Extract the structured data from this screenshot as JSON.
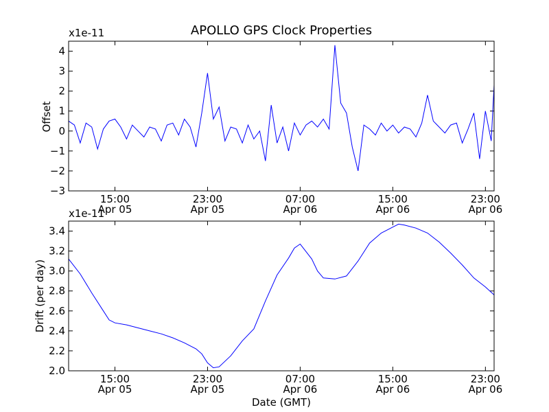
{
  "chart_data": [
    {
      "type": "line",
      "title": "APOLLO GPS Clock Properties",
      "ylabel": "Offset",
      "xlabel": "",
      "y_scale_label": "x1e-11",
      "ylim": [
        -3,
        4.5
      ],
      "xlim": [
        "Apr 05 11:00",
        "Apr 06 23:45"
      ],
      "yticks": [
        -3,
        -2,
        -1,
        0,
        1,
        2,
        3,
        4
      ],
      "ytick_labels": [
        "−3",
        "−2",
        "−1",
        "0",
        "1",
        "2",
        "3",
        "4"
      ],
      "xticks": [
        {
          "at": "Apr 05 15:00",
          "time": "15:00",
          "date": "Apr 05"
        },
        {
          "at": "Apr 05 23:00",
          "time": "23:00",
          "date": "Apr 05"
        },
        {
          "at": "Apr 06 07:00",
          "time": "07:00",
          "date": "Apr 06"
        },
        {
          "at": "Apr 06 15:00",
          "time": "15:00",
          "date": "Apr 06"
        },
        {
          "at": "Apr 06 23:00",
          "time": "23:00",
          "date": "Apr 06"
        }
      ],
      "series_color": "#0000ff",
      "series": [
        {
          "x": [
            "Apr 05 11:00",
            "Apr 05 11:30",
            "Apr 05 12:00",
            "Apr 05 12:30",
            "Apr 05 13:00",
            "Apr 05 13:30",
            "Apr 05 14:00",
            "Apr 05 14:30",
            "Apr 05 15:00",
            "Apr 05 15:30",
            "Apr 05 16:00",
            "Apr 05 16:30",
            "Apr 05 17:00",
            "Apr 05 17:30",
            "Apr 05 18:00",
            "Apr 05 18:30",
            "Apr 05 19:00",
            "Apr 05 19:30",
            "Apr 05 20:00",
            "Apr 05 20:30",
            "Apr 05 21:00",
            "Apr 05 21:30",
            "Apr 05 22:00",
            "Apr 05 22:30",
            "Apr 05 23:00",
            "Apr 05 23:30",
            "Apr 06 00:00",
            "Apr 06 00:30",
            "Apr 06 01:00",
            "Apr 06 01:30",
            "Apr 06 02:00",
            "Apr 06 02:30",
            "Apr 06 03:00",
            "Apr 06 03:30",
            "Apr 06 04:00",
            "Apr 06 04:30",
            "Apr 06 05:00",
            "Apr 06 05:30",
            "Apr 06 06:00",
            "Apr 06 06:30",
            "Apr 06 07:00",
            "Apr 06 07:30",
            "Apr 06 08:00",
            "Apr 06 08:30",
            "Apr 06 09:00",
            "Apr 06 09:30",
            "Apr 06 10:00",
            "Apr 06 10:30",
            "Apr 06 11:00",
            "Apr 06 11:30",
            "Apr 06 12:00",
            "Apr 06 12:30",
            "Apr 06 13:00",
            "Apr 06 13:30",
            "Apr 06 14:00",
            "Apr 06 14:30",
            "Apr 06 15:00",
            "Apr 06 15:30",
            "Apr 06 16:00",
            "Apr 06 16:30",
            "Apr 06 17:00",
            "Apr 06 17:30",
            "Apr 06 18:00",
            "Apr 06 18:30",
            "Apr 06 19:00",
            "Apr 06 19:30",
            "Apr 06 20:00",
            "Apr 06 20:30",
            "Apr 06 21:00",
            "Apr 06 21:30",
            "Apr 06 22:00",
            "Apr 06 22:30",
            "Apr 06 23:00",
            "Apr 06 23:30",
            "Apr 06 23:45"
          ],
          "y": [
            0.5,
            0.3,
            -0.6,
            0.4,
            0.2,
            -0.9,
            0.1,
            0.5,
            0.6,
            0.2,
            -0.4,
            0.3,
            0.0,
            -0.3,
            0.2,
            0.1,
            -0.5,
            0.3,
            0.4,
            -0.2,
            0.6,
            0.2,
            -0.8,
            0.9,
            2.9,
            0.6,
            1.2,
            -0.5,
            0.2,
            0.1,
            -0.6,
            0.3,
            -0.4,
            0.0,
            -1.5,
            1.3,
            -0.6,
            0.2,
            -1.0,
            0.4,
            -0.2,
            0.3,
            0.5,
            0.2,
            0.6,
            0.1,
            4.3,
            1.4,
            0.9,
            -0.8,
            -2.0,
            0.3,
            0.1,
            -0.2,
            0.4,
            0.0,
            0.3,
            -0.1,
            0.2,
            0.1,
            -0.3,
            0.4,
            1.8,
            0.5,
            0.2,
            -0.1,
            0.3,
            0.4,
            -0.6,
            0.1,
            0.9,
            -1.4,
            1.0,
            -0.5,
            2.3
          ]
        }
      ]
    },
    {
      "type": "line",
      "title": "",
      "ylabel": "Drift (per day)",
      "xlabel": "Date (GMT)",
      "y_scale_label": "x1e-11",
      "ylim": [
        2.0,
        3.5
      ],
      "xlim": [
        "Apr 05 11:00",
        "Apr 06 23:45"
      ],
      "yticks": [
        2.0,
        2.2,
        2.4,
        2.6,
        2.8,
        3.0,
        3.2,
        3.4
      ],
      "ytick_labels": [
        "2.0",
        "2.2",
        "2.4",
        "2.6",
        "2.8",
        "3.0",
        "3.2",
        "3.4"
      ],
      "xticks": [
        {
          "at": "Apr 05 15:00",
          "time": "15:00",
          "date": "Apr 05"
        },
        {
          "at": "Apr 05 23:00",
          "time": "23:00",
          "date": "Apr 05"
        },
        {
          "at": "Apr 06 07:00",
          "time": "07:00",
          "date": "Apr 06"
        },
        {
          "at": "Apr 06 15:00",
          "time": "15:00",
          "date": "Apr 06"
        },
        {
          "at": "Apr 06 23:00",
          "time": "23:00",
          "date": "Apr 06"
        }
      ],
      "series_color": "#0000ff",
      "series": [
        {
          "x": [
            "Apr 05 11:00",
            "Apr 05 12:00",
            "Apr 05 13:00",
            "Apr 05 14:00",
            "Apr 05 14:30",
            "Apr 05 15:00",
            "Apr 05 16:00",
            "Apr 05 17:00",
            "Apr 05 18:00",
            "Apr 05 19:00",
            "Apr 05 20:00",
            "Apr 05 21:00",
            "Apr 05 22:00",
            "Apr 05 22:30",
            "Apr 05 23:00",
            "Apr 05 23:30",
            "Apr 06 00:00",
            "Apr 06 01:00",
            "Apr 06 02:00",
            "Apr 06 03:00",
            "Apr 06 04:00",
            "Apr 06 05:00",
            "Apr 06 06:00",
            "Apr 06 06:30",
            "Apr 06 07:00",
            "Apr 06 08:00",
            "Apr 06 08:30",
            "Apr 06 09:00",
            "Apr 06 10:00",
            "Apr 06 11:00",
            "Apr 06 12:00",
            "Apr 06 13:00",
            "Apr 06 14:00",
            "Apr 06 15:00",
            "Apr 06 15:30",
            "Apr 06 16:00",
            "Apr 06 17:00",
            "Apr 06 18:00",
            "Apr 06 19:00",
            "Apr 06 20:00",
            "Apr 06 21:00",
            "Apr 06 22:00",
            "Apr 06 23:00",
            "Apr 06 23:45"
          ],
          "y": [
            3.12,
            2.97,
            2.78,
            2.6,
            2.51,
            2.48,
            2.46,
            2.43,
            2.4,
            2.37,
            2.33,
            2.28,
            2.22,
            2.17,
            2.08,
            2.03,
            2.04,
            2.15,
            2.3,
            2.42,
            2.7,
            2.96,
            3.13,
            3.23,
            3.27,
            3.12,
            3.0,
            2.93,
            2.92,
            2.95,
            3.1,
            3.28,
            3.38,
            3.44,
            3.47,
            3.46,
            3.43,
            3.38,
            3.29,
            3.18,
            3.06,
            2.93,
            2.84,
            2.76
          ]
        }
      ]
    }
  ]
}
